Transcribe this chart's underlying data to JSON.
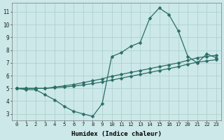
{
  "title": "",
  "xlabel": "Humidex (Indice chaleur)",
  "ylabel": "",
  "bg_color": "#cce8e8",
  "line_color": "#2a6e65",
  "grid_color": "#aacece",
  "line1_x": [
    0,
    1,
    2,
    3,
    4,
    5,
    6,
    7,
    8,
    9,
    10,
    11,
    12,
    13,
    14,
    15,
    16,
    17,
    20,
    21,
    22,
    23
  ],
  "line1_y": [
    5.0,
    4.9,
    4.9,
    4.5,
    4.1,
    3.6,
    3.2,
    3.0,
    2.8,
    3.8,
    7.5,
    7.8,
    8.3,
    8.6,
    10.5,
    11.3,
    10.8,
    9.5,
    7.5,
    7.0,
    7.7,
    7.4
  ],
  "line2_x": [
    0,
    1,
    2,
    3,
    4,
    5,
    6,
    7,
    8,
    9,
    10,
    11,
    12,
    13,
    14,
    15,
    16,
    17,
    20,
    21,
    22,
    23
  ],
  "line2_y": [
    5.0,
    5.0,
    5.0,
    5.0,
    5.1,
    5.2,
    5.3,
    5.45,
    5.6,
    5.75,
    5.95,
    6.1,
    6.25,
    6.4,
    6.55,
    6.7,
    6.85,
    7.0,
    7.2,
    7.4,
    7.5,
    7.6
  ],
  "line3_x": [
    0,
    1,
    2,
    3,
    4,
    5,
    6,
    7,
    8,
    9,
    10,
    11,
    12,
    13,
    14,
    15,
    16,
    17,
    20,
    21,
    22,
    23
  ],
  "line3_y": [
    5.0,
    5.0,
    5.0,
    5.0,
    5.05,
    5.1,
    5.18,
    5.27,
    5.38,
    5.5,
    5.65,
    5.8,
    5.95,
    6.1,
    6.25,
    6.4,
    6.55,
    6.7,
    6.9,
    7.05,
    7.15,
    7.25
  ],
  "xtick_labels": [
    "0",
    "1",
    "2",
    "3",
    "4",
    "5",
    "6",
    "7",
    "8",
    "9",
    "10",
    "11",
    "12",
    "13",
    "14",
    "15",
    "16",
    "17",
    "20",
    "21",
    "22",
    "23"
  ],
  "yticks": [
    3,
    4,
    5,
    6,
    7,
    8,
    9,
    10,
    11
  ],
  "ylim": [
    2.5,
    11.7
  ],
  "marker_size": 2.5,
  "linewidth": 0.9
}
